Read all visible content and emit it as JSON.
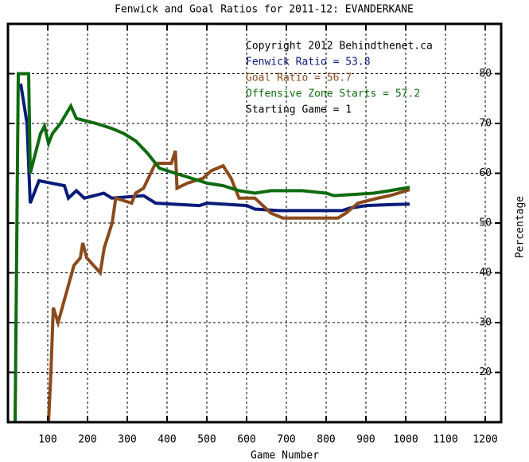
{
  "chart_data": {
    "type": "line",
    "title": "Fenwick and Goal Ratios for 2011-12: EVANDERKANE",
    "x_label": "Game Number",
    "y_label": "Percentage",
    "annotations": [
      {
        "text": "Copyright 2012 Behindthenet.ca",
        "color": "#000000"
      },
      {
        "text": "Fenwick Ratio = 53.8",
        "color": "#0a1c7a"
      },
      {
        "text": "Goal Ratio = 56.7",
        "color": "#8b4a1c"
      },
      {
        "text": "Offensive Zone Starts = 57.2",
        "color": "#0f6b0f"
      },
      {
        "text": "Starting Game = 1",
        "color": "#000000"
      }
    ],
    "xlim": [
      0,
      1240
    ],
    "ylim": [
      10,
      90
    ],
    "xticks": [
      100,
      200,
      300,
      400,
      500,
      600,
      700,
      800,
      900,
      1000,
      1100,
      1200
    ],
    "yticks": [
      20,
      30,
      40,
      50,
      60,
      70,
      80
    ],
    "grid": true,
    "series": [
      {
        "color": "#0a1c7a",
        "x": [
          32,
          48,
          56,
          78,
          142,
          152,
          172,
          192,
          241,
          261,
          341,
          371,
          481,
          501,
          601,
          621,
          681,
          840,
          860,
          900,
          960,
          1010
        ],
        "values": [
          78,
          70,
          54,
          58.5,
          57.5,
          55,
          56.5,
          55,
          56,
          55,
          55.5,
          54,
          53.5,
          54,
          53.5,
          52.8,
          52.5,
          52.5,
          53,
          53.5,
          53.7,
          53.8
        ]
      },
      {
        "color": "#8b4a1c",
        "x": [
          102,
          108,
          114,
          126,
          166,
          182,
          188,
          198,
          232,
          242,
          262,
          271,
          311,
          321,
          341,
          371,
          411,
          421,
          425,
          451,
          491,
          511,
          541,
          561,
          581,
          621,
          661,
          691,
          830,
          850,
          880,
          930,
          960,
          1010
        ],
        "values": [
          10,
          20,
          33,
          30,
          41.5,
          43,
          46,
          43,
          40,
          45,
          50,
          55,
          54,
          56,
          57,
          62,
          62,
          64.5,
          57,
          58,
          59,
          60.5,
          61.5,
          59,
          55,
          55,
          52,
          51,
          51,
          52,
          54,
          55,
          55.5,
          56.7
        ]
      },
      {
        "color": "#0f6b0f",
        "x": [
          18,
          26,
          52,
          56,
          82,
          92,
          102,
          112,
          132,
          158,
          172,
          222,
          261,
          291,
          321,
          351,
          381,
          421,
          461,
          501,
          541,
          581,
          621,
          661,
          740,
          800,
          820,
          920,
          960,
          1010
        ],
        "values": [
          10,
          80,
          80,
          60,
          68,
          69.5,
          66,
          68,
          70,
          73.5,
          71,
          70,
          69,
          68,
          66.5,
          64,
          61,
          60,
          59,
          58,
          57.5,
          56.5,
          56,
          56.5,
          56.5,
          56,
          55.5,
          56,
          56.5,
          57.2
        ]
      }
    ]
  }
}
